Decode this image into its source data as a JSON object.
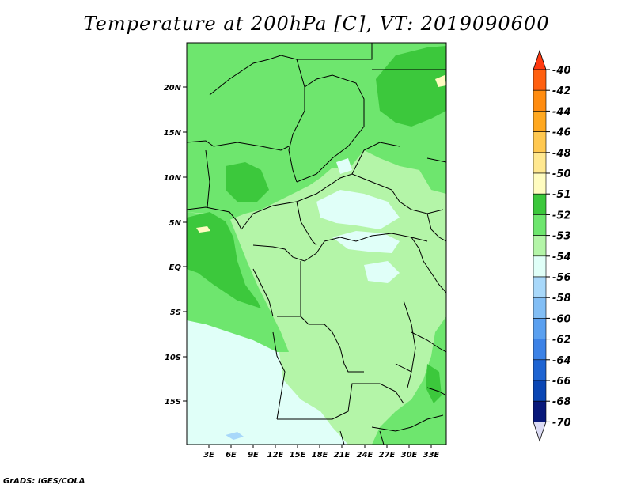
{
  "title": "Temperature at 200hPa [C], VT: 2019090600",
  "footer": "GrADS: IGES/COLA",
  "map": {
    "lat_ticks": [
      "20N",
      "15N",
      "10N",
      "5N",
      "EQ",
      "5S",
      "10S",
      "15S"
    ],
    "lon_ticks": [
      "3E",
      "6E",
      "9E",
      "12E",
      "15E",
      "18E",
      "21E",
      "24E",
      "27E",
      "30E",
      "33E"
    ]
  },
  "colorbar": {
    "levels": [
      {
        "label": "-40",
        "color": "#ff3a10"
      },
      {
        "label": "-42",
        "color": "#ff6010"
      },
      {
        "label": "-44",
        "color": "#ff8c10"
      },
      {
        "label": "-46",
        "color": "#ffa820"
      },
      {
        "label": "-48",
        "color": "#ffc850"
      },
      {
        "label": "-50",
        "color": "#ffe890"
      },
      {
        "label": "-51",
        "color": "#fffcc0"
      },
      {
        "label": "-52",
        "color": "#3cc83c"
      },
      {
        "label": "-53",
        "color": "#6ee66e"
      },
      {
        "label": "-54",
        "color": "#b4f5a8"
      },
      {
        "label": "-56",
        "color": "#e0fff8"
      },
      {
        "label": "-58",
        "color": "#a8d8fa"
      },
      {
        "label": "-60",
        "color": "#82bef5"
      },
      {
        "label": "-62",
        "color": "#5aa0f0"
      },
      {
        "label": "-64",
        "color": "#3c82e6"
      },
      {
        "label": "-66",
        "color": "#1e64d2"
      },
      {
        "label": "-68",
        "color": "#0a46b4"
      },
      {
        "label": "-70",
        "color": "#08187a"
      }
    ],
    "bottom_cap_color": "#dcdcf5"
  }
}
